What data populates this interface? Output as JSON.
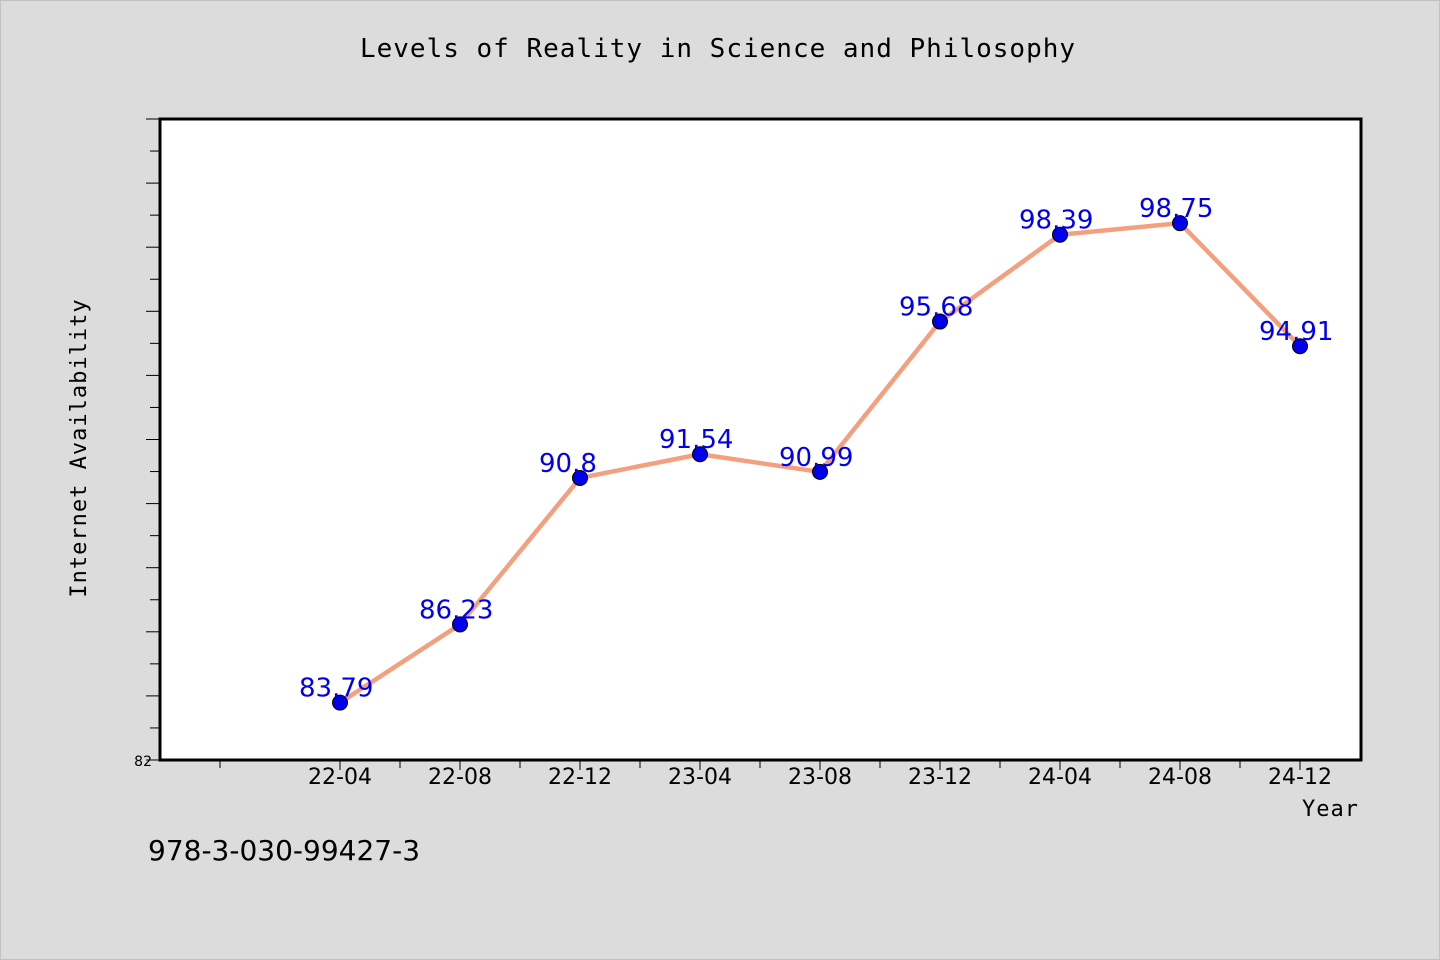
{
  "chart_data": {
    "type": "line",
    "title": "Levels of Reality in Science and Philosophy",
    "xlabel": "Year",
    "ylabel": "Internet Availability",
    "categories": [
      "22-04",
      "22-08",
      "22-12",
      "23-04",
      "23-08",
      "23-12",
      "24-04",
      "24-08",
      "24-12"
    ],
    "values": [
      83.79,
      86.23,
      90.8,
      91.54,
      90.99,
      95.68,
      98.39,
      98.75,
      94.91
    ],
    "data_labels": [
      "83.79",
      "86.23",
      "90.8",
      "91.54",
      "90.99",
      "95.68",
      "98.39",
      "98.75",
      "94.91"
    ],
    "ylim": [
      82,
      102
    ],
    "y_tick_labels": [
      "82"
    ],
    "grid": false,
    "legend": "none",
    "line_color": "#f4a07f",
    "marker_color": "#0000ee",
    "label_color": "#0000ee"
  },
  "footer": {
    "isbn": "978-3-030-99427-3"
  }
}
